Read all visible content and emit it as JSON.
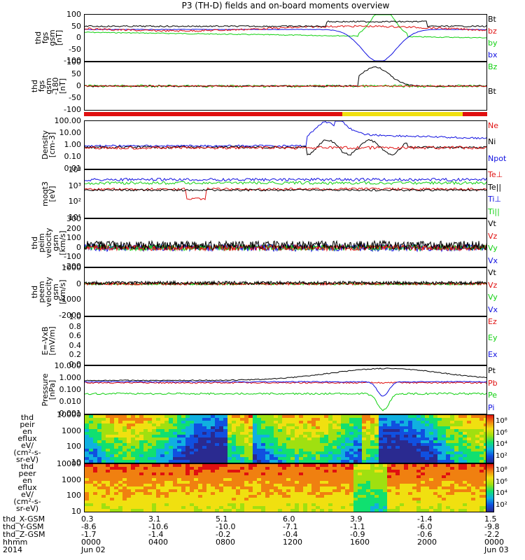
{
  "title": "P3 (TH-D) fields and on-board moments overview",
  "colors": {
    "black": "#000000",
    "red": "#e01010",
    "green": "#10d010",
    "blue": "#1010e0"
  },
  "chart_data": [
    {
      "type": "line",
      "name": "fgs",
      "ylabel": [
        "thd",
        "fgs",
        "gsm",
        "[nT]"
      ],
      "ylim": [
        -100,
        100
      ],
      "ticks": [
        "100",
        "50",
        "0",
        "-50",
        "-100"
      ],
      "legend": [
        "Bt",
        "bz",
        "by",
        "bx"
      ]
    },
    {
      "type": "line",
      "name": "fgs2",
      "ylabel": [
        "thd",
        "fgs",
        "gsm",
        "-180",
        "[nT]"
      ],
      "ylim": [
        -130,
        130
      ],
      "ticks": [
        "100",
        "50",
        "0",
        "-50",
        "-100"
      ],
      "legend": [
        "Bz",
        "Bt"
      ]
    },
    {
      "type": "line",
      "name": "density",
      "ylabel": [
        "Density",
        "[cm-3]"
      ],
      "scale": "log",
      "ylim": [
        0.01,
        100
      ],
      "ticks": [
        "100.00",
        "10.00",
        "1.00",
        "0.10",
        "0.01"
      ],
      "legend": [
        "Ne",
        "Ni",
        "Npot"
      ]
    },
    {
      "type": "line",
      "name": "temp",
      "ylabel": [
        "moqt3",
        "[eV]"
      ],
      "scale": "log",
      "ylim": [
        10,
        10000
      ],
      "ticks": [
        "10⁴",
        "10³",
        "10²",
        "10¹"
      ],
      "legend": [
        "Te⊥",
        "Te||",
        "Ti⊥",
        "Ti||"
      ]
    },
    {
      "type": "line",
      "name": "peim",
      "ylabel": [
        "thd",
        "peim",
        "velocity",
        "gsm",
        "[km/s]"
      ],
      "ylim": [
        -200,
        300
      ],
      "ticks": [
        "300",
        "200",
        "100",
        "0",
        "-100",
        "-200"
      ],
      "legend": [
        "Vt",
        "Vz",
        "Vy",
        "Vx"
      ]
    },
    {
      "type": "line",
      "name": "peem",
      "ylabel": [
        "thd",
        "peem",
        "velocity",
        "gsm",
        "[km/s]"
      ],
      "ylim": [
        -2000,
        1000
      ],
      "ticks": [
        "1000",
        "0",
        "-1000",
        "-2000"
      ],
      "legend": [
        "Vt",
        "Vz",
        "Vy",
        "Vx"
      ]
    },
    {
      "type": "line",
      "name": "efield",
      "ylabel": [
        "E=-VxB",
        "[mV/m]"
      ],
      "ylim": [
        0,
        1
      ],
      "ticks": [
        "1.0",
        "0.8",
        "0.6",
        "0.4",
        "0.2",
        "0.0"
      ],
      "legend": [
        "Ez",
        "Ey",
        "Ex"
      ]
    },
    {
      "type": "line",
      "name": "pressure",
      "ylabel": [
        "Pressure",
        "[nPa]"
      ],
      "scale": "log",
      "ylim": [
        0.0005,
        20
      ],
      "ticks": [
        "10.000",
        "1.000",
        "0.100",
        "0.010",
        "0.001"
      ],
      "legend": [
        "Pt",
        "Pb",
        "Pe",
        "Pi"
      ]
    },
    {
      "type": "heatmap",
      "name": "peir",
      "ylabel": [
        "thd",
        "peir",
        "en",
        "eflux",
        "eV/",
        "(cm²-s-",
        "sr-eV)"
      ],
      "scale": "log",
      "ylim": [
        5,
        20000
      ],
      "ticks": [
        "10000",
        "1000",
        "100",
        "10"
      ],
      "colorbar": [
        "10⁸",
        "10⁶",
        "10⁴",
        "10²"
      ]
    },
    {
      "type": "heatmap",
      "name": "peer",
      "ylabel": [
        "thd",
        "peer",
        "en",
        "eflux",
        "eV/",
        "(cm²-s-",
        "sr-eV)"
      ],
      "scale": "log",
      "ylim": [
        5,
        20000
      ],
      "ticks": [
        "10000",
        "1000",
        "100",
        "10"
      ],
      "colorbar": [
        "10⁸",
        "10⁶",
        "10⁴",
        "10²"
      ]
    }
  ],
  "xaxis": {
    "labels": [
      "thd_X-GSM",
      "thd_Y-GSM",
      "thd_Z-GSM",
      "hhmm",
      "2014"
    ],
    "rows": [
      [
        "0.3",
        "3.1",
        "5.1",
        "6.0",
        "3.9",
        "-1.4",
        "1.5"
      ],
      [
        "-8.6",
        "-10.6",
        "-10.0",
        "-7.1",
        "-1.1",
        "-6.0",
        "-9.8"
      ],
      [
        "-1.7",
        "-1.4",
        "-0.2",
        "-0.4",
        "-0.9",
        "-0.6",
        "-2.2"
      ],
      [
        "0000",
        "0400",
        "0800",
        "1200",
        "1600",
        "2000",
        "0000"
      ],
      [
        "Jun 02",
        "",
        "",
        "",
        "",
        "",
        "Jun 03"
      ]
    ]
  }
}
